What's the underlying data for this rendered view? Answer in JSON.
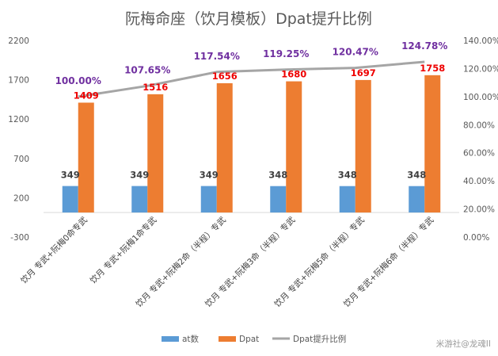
{
  "chart_data": {
    "type": "bar",
    "title": "阮梅命座（饮月模板）Dpat提升比例",
    "categories": [
      "饮月 专武+阮梅0命专武",
      "饮月 专武+阮梅1命专武",
      "饮月 专武+阮梅2命（半程）专武",
      "饮月 专武+阮梅3命（半程）专武",
      "饮月 专武+阮梅5命（半程）专武",
      "饮月 专武+阮梅6命（半程）专武"
    ],
    "series": [
      {
        "name": "at数",
        "type": "bar",
        "axis": "left",
        "color": "#5b9bd5",
        "values": [
          349,
          349,
          349,
          348,
          348,
          348
        ]
      },
      {
        "name": "Dpat",
        "type": "bar",
        "axis": "left",
        "color": "#ed7d31",
        "values": [
          1409,
          1516,
          1656,
          1680,
          1697,
          1758
        ]
      },
      {
        "name": "Dpat提升比例",
        "type": "line",
        "axis": "right",
        "color": "#a5a5a5",
        "values": [
          100.0,
          107.65,
          117.54,
          119.25,
          120.47,
          124.78
        ],
        "labels": [
          "100.00%",
          "107.65%",
          "117.54%",
          "119.25%",
          "120.47%",
          "124.78%"
        ]
      }
    ],
    "y_left": {
      "min": -300,
      "max": 2200,
      "ticks": [
        -300,
        200,
        700,
        1200,
        1700,
        2200
      ]
    },
    "y_right": {
      "min": 0,
      "max": 140,
      "ticks": [
        "0.00%",
        "20.00%",
        "40.00%",
        "60.00%",
        "80.00%",
        "100.00%",
        "120.00%",
        "140.00%"
      ]
    },
    "legend_position": "bottom",
    "grid": false
  },
  "watermark": "米游社@龙魂II"
}
